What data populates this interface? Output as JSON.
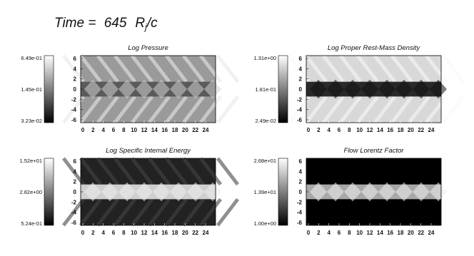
{
  "title": {
    "text": "Time =",
    "value": "645",
    "unit": "R",
    "unit_sub": "j",
    "unit_tail": "/c"
  },
  "axes": {
    "xticks": [
      "0",
      "2",
      "4",
      "6",
      "8",
      "10",
      "12",
      "14",
      "16",
      "18",
      "20",
      "22",
      "24"
    ],
    "yticks": [
      "6",
      "4",
      "2",
      "0",
      "-2",
      "-4",
      "-6"
    ]
  },
  "panels": [
    {
      "title": "Log Pressure",
      "colorbar": [
        "6.49e-01",
        "1.45e-01",
        "3.23e-02"
      ]
    },
    {
      "title": "Log Proper Rest-Mass Density",
      "colorbar": [
        "1.31e+00",
        "1.81e-01",
        "2.49e-02"
      ]
    },
    {
      "title": "Log Specific Internal Energy",
      "colorbar": [
        "1.52e+01",
        "2.82e+00",
        "5.24e-01"
      ]
    },
    {
      "title": "Flow Lorentz Factor",
      "colorbar": [
        "2.68e+01",
        "1.39e+01",
        "1.00e+00"
      ]
    }
  ]
}
